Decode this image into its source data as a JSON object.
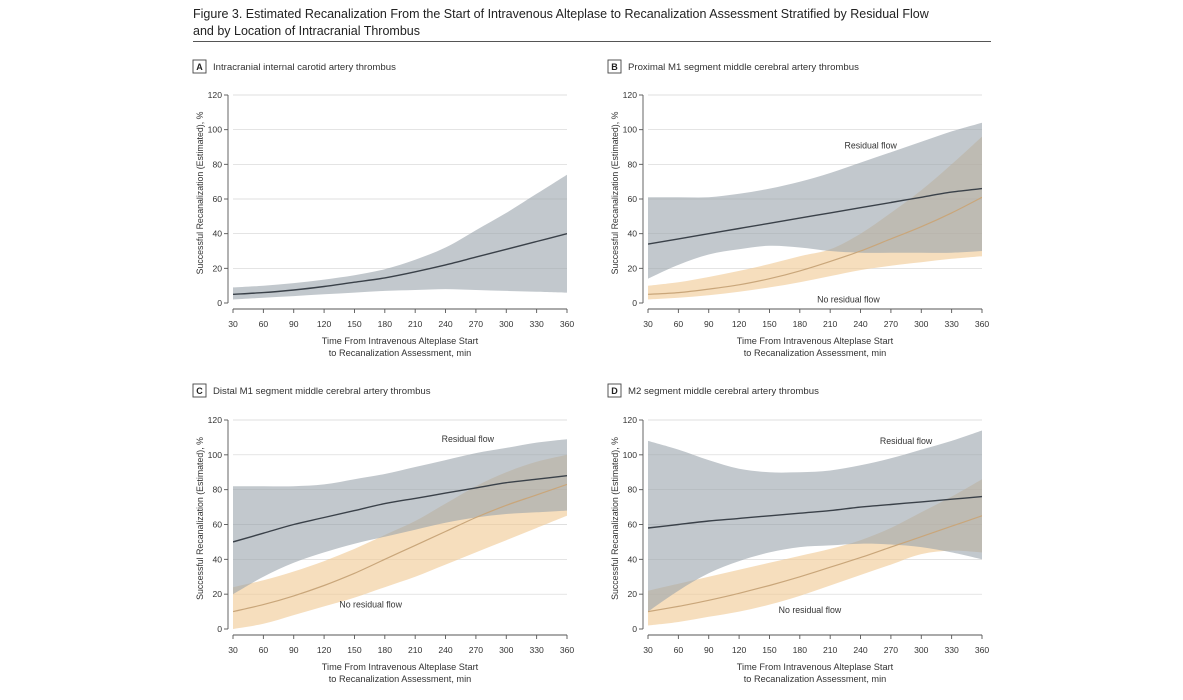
{
  "figure": {
    "title_line1": "Figure 3. Estimated Recanalization From the Start of Intravenous Alteplase to Recanalization Assessment Stratified by Residual Flow",
    "title_line2": "and by Location of Intracranial Thrombus"
  },
  "colors": {
    "residual_line": "#3a4149",
    "residual_band": "#9aa3ab",
    "noresidual_line": "#c9a67a",
    "noresidual_band": "#f0c994",
    "axis": "#555555",
    "grid": "#d4d4d4"
  },
  "chart_data": [
    {
      "type": "line",
      "panel_letter": "A",
      "title": "Intracranial internal carotid artery thrombus",
      "xlabel": [
        "Time From Intravenous Alteplase Start",
        "to Recanalization Assessment, min"
      ],
      "ylabel": "Successful Recanalization (Estimated), %",
      "xlim": [
        30,
        360
      ],
      "ylim": [
        0,
        120
      ],
      "x_ticks": [
        30,
        60,
        90,
        120,
        150,
        180,
        210,
        240,
        270,
        300,
        330,
        360
      ],
      "y_ticks": [
        0,
        20,
        40,
        60,
        80,
        100,
        120
      ],
      "grid": "horizontal",
      "annotations": [],
      "series": [
        {
          "style": "residual",
          "x": [
            30,
            60,
            90,
            120,
            150,
            180,
            210,
            240,
            270,
            300,
            330,
            360
          ],
          "y": [
            5,
            6,
            7.5,
            9.5,
            12,
            14.5,
            18,
            22,
            26.5,
            31,
            35.5,
            40
          ],
          "lower": [
            2,
            3,
            4,
            5,
            6,
            7,
            7.5,
            8,
            7.5,
            7,
            6.5,
            6
          ],
          "upper": [
            9,
            10,
            11.5,
            13.5,
            16,
            19.5,
            25,
            32,
            42,
            52,
            63,
            74
          ]
        }
      ]
    },
    {
      "type": "line",
      "panel_letter": "B",
      "title": "Proximal M1 segment middle cerebral artery thrombus",
      "xlabel": [
        "Time From Intravenous Alteplase Start",
        "to Recanalization Assessment, min"
      ],
      "ylabel": "Successful Recanalization (Estimated), %",
      "xlim": [
        30,
        360
      ],
      "ylim": [
        0,
        120
      ],
      "x_ticks": [
        30,
        60,
        90,
        120,
        150,
        180,
        210,
        240,
        270,
        300,
        330,
        360
      ],
      "y_ticks": [
        0,
        20,
        40,
        60,
        80,
        100,
        120
      ],
      "grid": "horizontal",
      "annotations": [
        {
          "text": "Residual flow",
          "x": 250,
          "y": 91
        },
        {
          "text": "No residual flow",
          "x": 228,
          "y": 2
        }
      ],
      "series": [
        {
          "name": "No residual flow",
          "style": "noresidual",
          "x": [
            30,
            60,
            90,
            120,
            150,
            180,
            210,
            240,
            270,
            300,
            330,
            360
          ],
          "y": [
            5,
            6,
            8,
            10.5,
            14,
            18.5,
            24,
            30,
            37,
            44,
            52,
            61
          ],
          "lower": [
            2,
            3,
            4.5,
            6.5,
            9,
            12,
            15.5,
            19,
            21.5,
            23.5,
            25.5,
            27
          ],
          "upper": [
            10,
            12,
            15,
            18.5,
            22.5,
            27,
            31,
            40,
            52,
            65,
            80,
            96
          ]
        },
        {
          "name": "Residual flow",
          "style": "residual",
          "x": [
            30,
            60,
            90,
            120,
            150,
            180,
            210,
            240,
            270,
            300,
            330,
            360
          ],
          "y": [
            34,
            37,
            40,
            43,
            46,
            49,
            52,
            55,
            58,
            61,
            64,
            66
          ],
          "lower": [
            14,
            22,
            28,
            31,
            33,
            32,
            30,
            29,
            29,
            29,
            29,
            30
          ],
          "upper": [
            61,
            61,
            61,
            63,
            66,
            70,
            75,
            81,
            87,
            93,
            99,
            104
          ]
        }
      ]
    },
    {
      "type": "line",
      "panel_letter": "C",
      "title": "Distal M1 segment middle cerebral artery thrombus",
      "xlabel": [
        "Time From Intravenous Alteplase Start",
        "to Recanalization Assessment, min"
      ],
      "ylabel": "Successful Recanalization (Estimated), %",
      "xlim": [
        30,
        360
      ],
      "ylim": [
        0,
        120
      ],
      "x_ticks": [
        30,
        60,
        90,
        120,
        150,
        180,
        210,
        240,
        270,
        300,
        330,
        360
      ],
      "y_ticks": [
        0,
        20,
        40,
        60,
        80,
        100,
        120
      ],
      "grid": "horizontal",
      "annotations": [
        {
          "text": "Residual flow",
          "x": 262,
          "y": 109
        },
        {
          "text": "No residual flow",
          "x": 166,
          "y": 14
        }
      ],
      "series": [
        {
          "name": "No residual flow",
          "style": "noresidual",
          "x": [
            30,
            60,
            90,
            120,
            150,
            180,
            210,
            240,
            270,
            300,
            330,
            360
          ],
          "y": [
            10,
            14,
            19,
            25,
            32,
            40,
            48,
            56,
            64,
            71,
            77,
            83
          ],
          "lower": [
            0,
            3,
            8,
            13,
            18,
            24,
            30,
            37,
            44,
            51,
            58,
            65
          ],
          "upper": [
            24,
            28,
            33,
            39,
            46,
            54,
            62,
            72,
            82,
            90,
            96,
            100
          ]
        },
        {
          "name": "Residual flow",
          "style": "residual",
          "x": [
            30,
            60,
            90,
            120,
            150,
            180,
            210,
            240,
            270,
            300,
            330,
            360
          ],
          "y": [
            50,
            55,
            60,
            64,
            68,
            72,
            75,
            78,
            81,
            84,
            86,
            88
          ],
          "lower": [
            20,
            30,
            38,
            44,
            49,
            53,
            57,
            61,
            64,
            66,
            67,
            68
          ],
          "upper": [
            82,
            82,
            82,
            83,
            86,
            89,
            93,
            97,
            101,
            104,
            107,
            109
          ]
        }
      ]
    },
    {
      "type": "line",
      "panel_letter": "D",
      "title": "M2 segment middle cerebral artery thrombus",
      "xlabel": [
        "Time From Intravenous Alteplase Start",
        "to Recanalization Assessment, min"
      ],
      "ylabel": "Successful Recanalization (Estimated), %",
      "xlim": [
        30,
        360
      ],
      "ylim": [
        0,
        120
      ],
      "x_ticks": [
        30,
        60,
        90,
        120,
        150,
        180,
        210,
        240,
        270,
        300,
        330,
        360
      ],
      "y_ticks": [
        0,
        20,
        40,
        60,
        80,
        100,
        120
      ],
      "grid": "horizontal",
      "annotations": [
        {
          "text": "Residual flow",
          "x": 285,
          "y": 108
        },
        {
          "text": "No residual flow",
          "x": 190,
          "y": 11
        }
      ],
      "series": [
        {
          "name": "No residual flow",
          "style": "noresidual",
          "x": [
            30,
            60,
            90,
            120,
            150,
            180,
            210,
            240,
            270,
            300,
            330,
            360
          ],
          "y": [
            10,
            13,
            16.5,
            20.5,
            25,
            30,
            35.5,
            41,
            47,
            53,
            59,
            65
          ],
          "lower": [
            2,
            4,
            7,
            10,
            14,
            19,
            25,
            31,
            37,
            43,
            45,
            44
          ],
          "upper": [
            22,
            26,
            30,
            34,
            38,
            42,
            46,
            51,
            58,
            67,
            76,
            86
          ]
        },
        {
          "name": "Residual flow",
          "style": "residual",
          "x": [
            30,
            60,
            90,
            120,
            150,
            180,
            210,
            240,
            270,
            300,
            330,
            360
          ],
          "y": [
            58,
            60,
            62,
            63.5,
            65,
            66.5,
            68,
            70,
            71.5,
            73,
            74.5,
            76
          ],
          "lower": [
            10,
            22,
            32,
            39,
            44,
            47,
            48,
            49,
            48.5,
            47,
            44,
            40
          ],
          "upper": [
            108,
            103,
            97,
            92,
            90,
            90,
            91,
            94,
            98,
            103,
            108,
            114
          ]
        }
      ]
    }
  ]
}
